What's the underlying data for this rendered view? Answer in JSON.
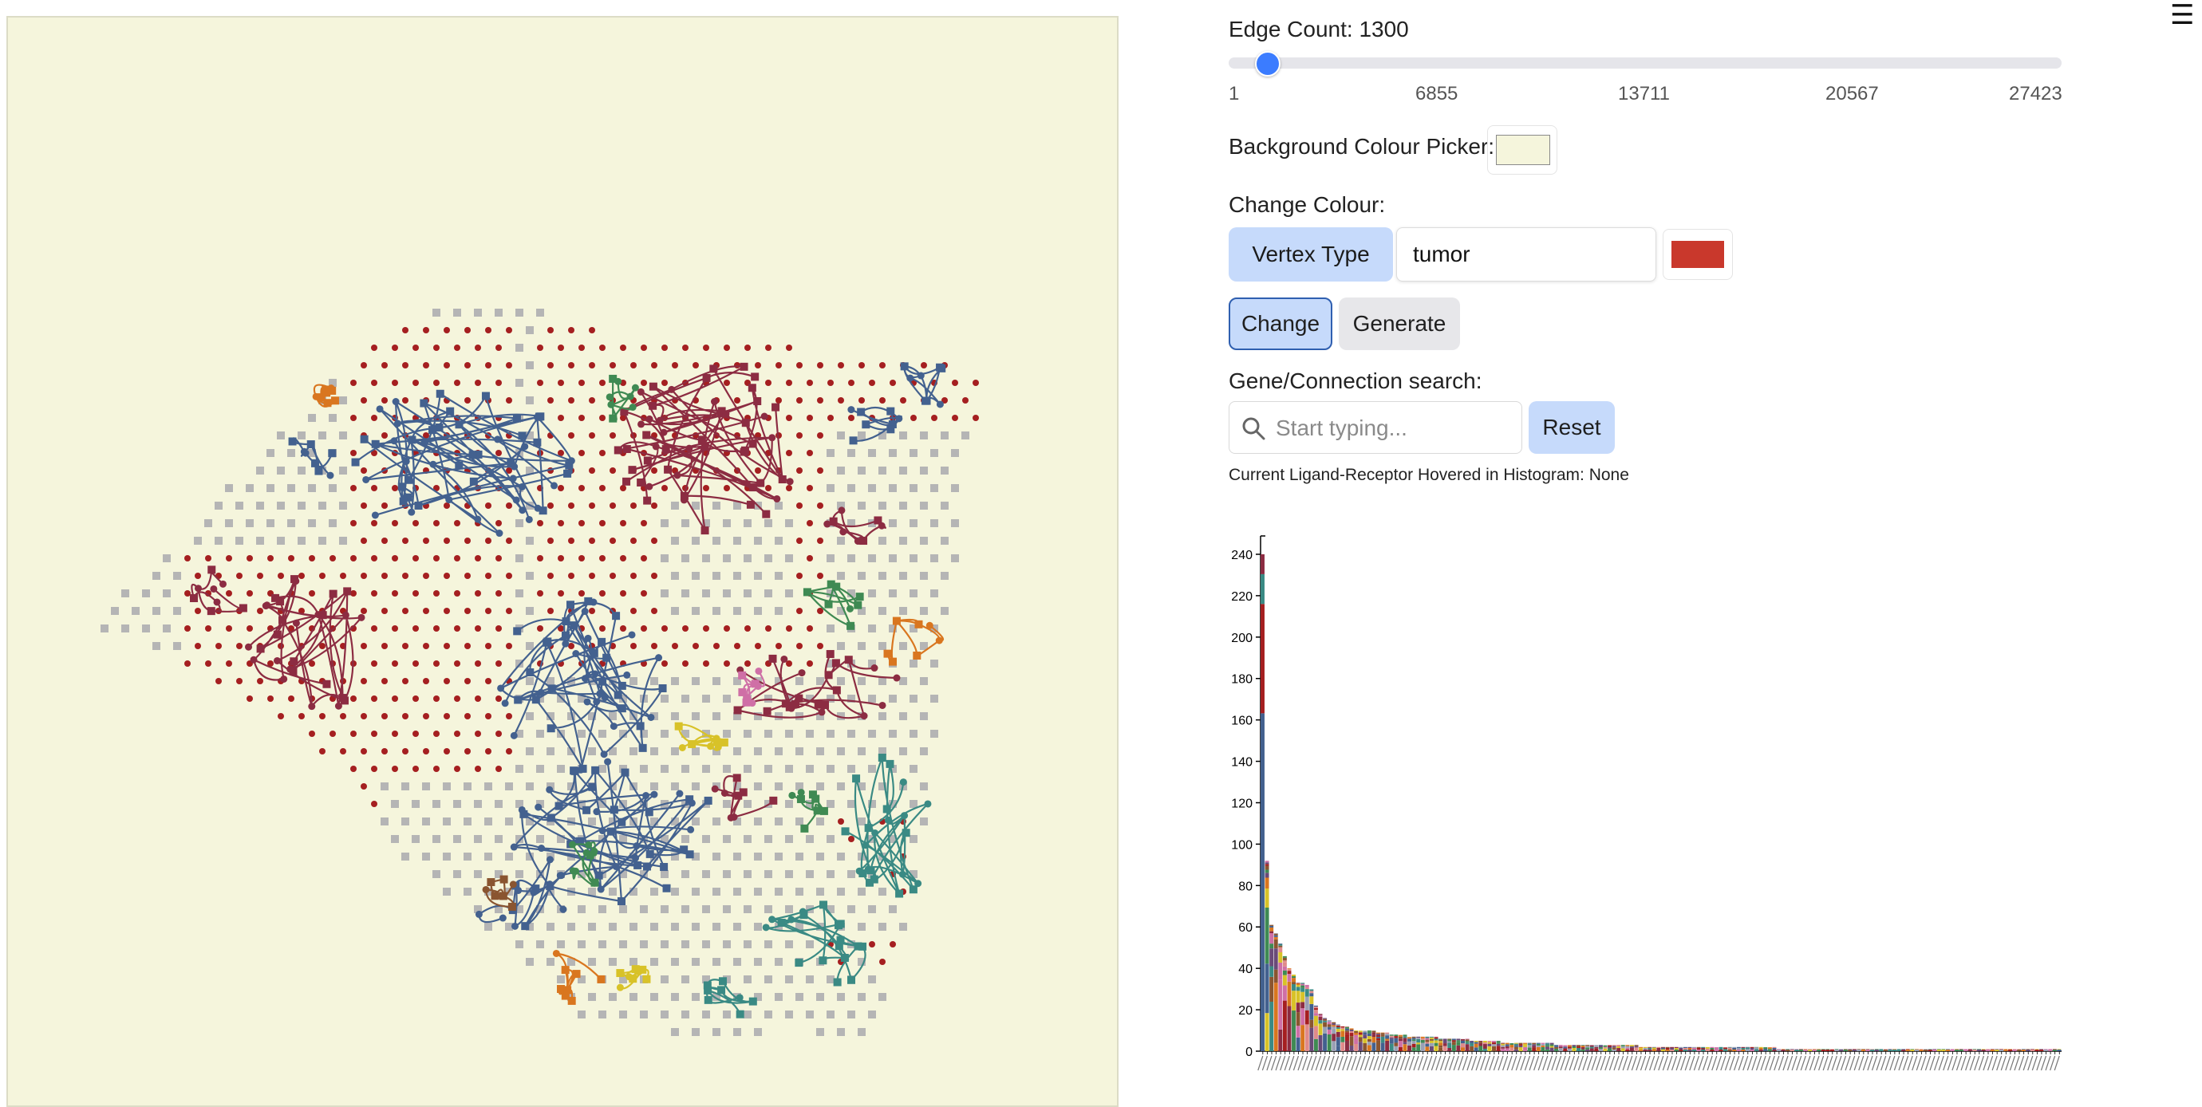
{
  "menu": {
    "icon": "hamburger-menu-icon",
    "glyph": "☰"
  },
  "edge_count": {
    "label": "Edge Count: 1300",
    "value": 1300,
    "min": 1,
    "max": 27423,
    "ticks": [
      "1",
      "6855",
      "13711",
      "20567",
      "27423"
    ]
  },
  "background": {
    "label": "Background Colour Picker:",
    "color": "#f5f5dc"
  },
  "change_colour": {
    "label": "Change Colour:",
    "mode_button": "Vertex Type",
    "vertex_value": "tumor",
    "color": "#c9382c",
    "change_button": "Change",
    "generate_button": "Generate"
  },
  "search": {
    "label": "Gene/Connection search:",
    "placeholder": "Start typing...",
    "value": "",
    "reset_button": "Reset"
  },
  "hover_status": "Current Ligand-Receptor Hovered in Histogram: None",
  "colors": {
    "blue": "#43618f",
    "red": "#a51f20",
    "maroon": "#8c2c42",
    "teal": "#3a8a84",
    "green": "#3f8a53",
    "orange": "#d9761f",
    "yellow": "#d8c228",
    "pink": "#cf6fa6",
    "gray": "#b5b5b5",
    "purple": "#6a4a78",
    "brown": "#8a5530"
  },
  "chart_data": {
    "type": "bar",
    "stacked": true,
    "ylim": [
      0,
      245
    ],
    "yticks": [
      0,
      20,
      40,
      60,
      80,
      100,
      120,
      140,
      160,
      180,
      200,
      220,
      240
    ],
    "values": [
      240,
      92,
      61,
      57,
      52,
      46,
      40,
      37,
      33,
      33,
      32,
      30,
      22,
      18,
      16,
      15,
      14,
      13,
      12,
      12,
      11,
      10,
      10,
      10,
      10,
      10,
      9,
      9,
      9,
      8,
      8,
      8,
      8,
      7,
      7,
      7,
      7,
      7,
      7,
      7,
      6,
      6,
      6,
      6,
      6,
      6,
      6,
      5,
      5,
      5,
      5,
      5,
      5,
      5,
      4,
      4,
      4,
      4,
      4,
      4,
      4,
      4,
      4,
      4,
      4,
      4,
      3,
      3,
      3,
      3,
      3,
      3,
      3,
      3,
      3,
      3,
      3,
      3,
      3,
      3,
      3,
      3,
      3,
      3,
      3,
      2,
      2,
      2,
      2,
      2,
      2,
      2,
      2,
      2,
      2,
      2,
      2,
      2,
      2,
      2,
      2,
      2,
      2,
      2,
      2,
      2,
      2,
      2,
      2,
      2,
      2,
      2,
      2,
      2,
      2,
      2,
      1,
      1,
      1,
      1,
      1,
      1,
      1,
      1,
      1,
      1,
      1,
      1,
      1,
      1,
      1,
      1,
      1,
      1,
      1,
      1,
      1,
      1,
      1,
      1,
      1,
      1,
      1,
      1,
      1,
      1,
      1,
      1,
      1,
      1,
      1,
      1,
      1,
      1,
      1,
      1,
      1,
      1,
      1,
      1,
      1,
      1,
      1,
      1,
      1,
      1,
      1,
      1,
      1,
      1,
      1,
      1,
      1,
      1,
      1,
      1,
      1,
      1,
      1,
      1
    ]
  }
}
